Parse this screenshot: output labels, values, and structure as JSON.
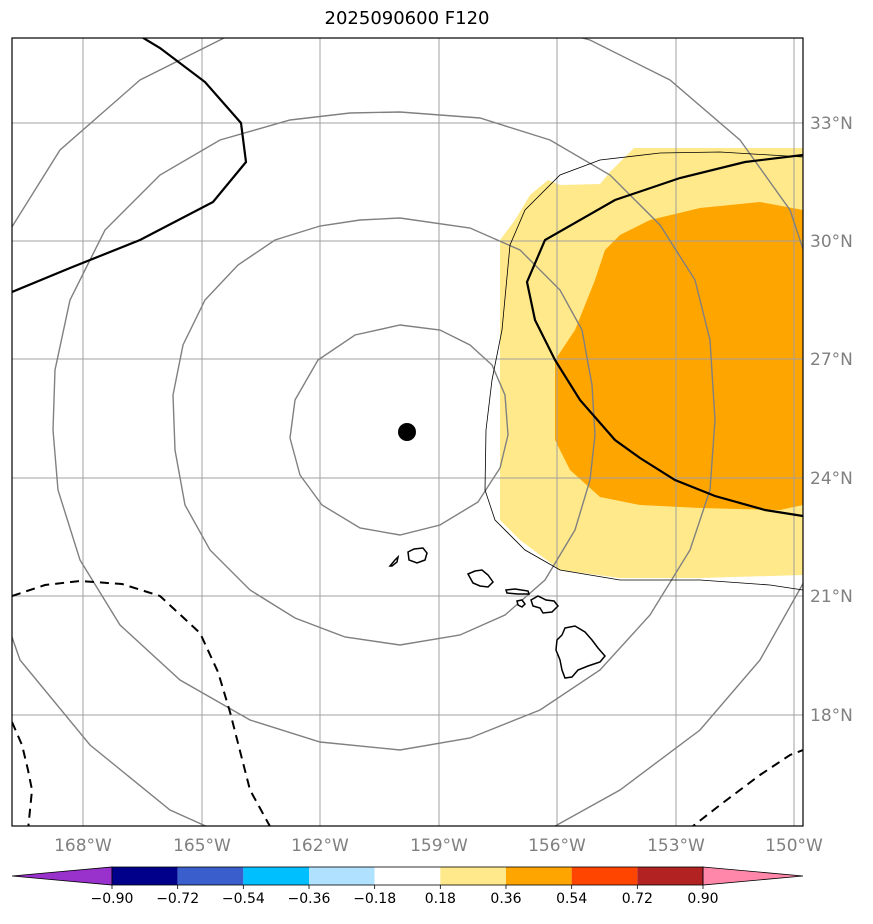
{
  "title": "2025090600 F120",
  "lat_labels": [
    "33°N",
    "30°N",
    "27°N",
    "24°N",
    "21°N",
    "18°N"
  ],
  "lon_labels": [
    "168°W",
    "165°W",
    "162°W",
    "159°W",
    "156°W",
    "153°W",
    "150°W"
  ],
  "colorbar": {
    "ticks": [
      "−0.90",
      "−0.72",
      "−0.54",
      "−0.36",
      "−0.18",
      "0.18",
      "0.36",
      "0.54",
      "0.72",
      "0.90"
    ],
    "colors": [
      "#9932cc",
      "#00008b",
      "#3a5fcd",
      "#00bfff",
      "#b0e2ff",
      "#ffffff",
      "#ffe98a",
      "#ffa500",
      "#ff4500",
      "#b22222",
      "#ff88aa"
    ]
  },
  "colors": {
    "light_anomaly": "#ffe98a",
    "strong_anomaly": "#ffa500",
    "isobar": "#808080",
    "grid": "#a0a0a0"
  },
  "center_marker": "filled-circle"
}
